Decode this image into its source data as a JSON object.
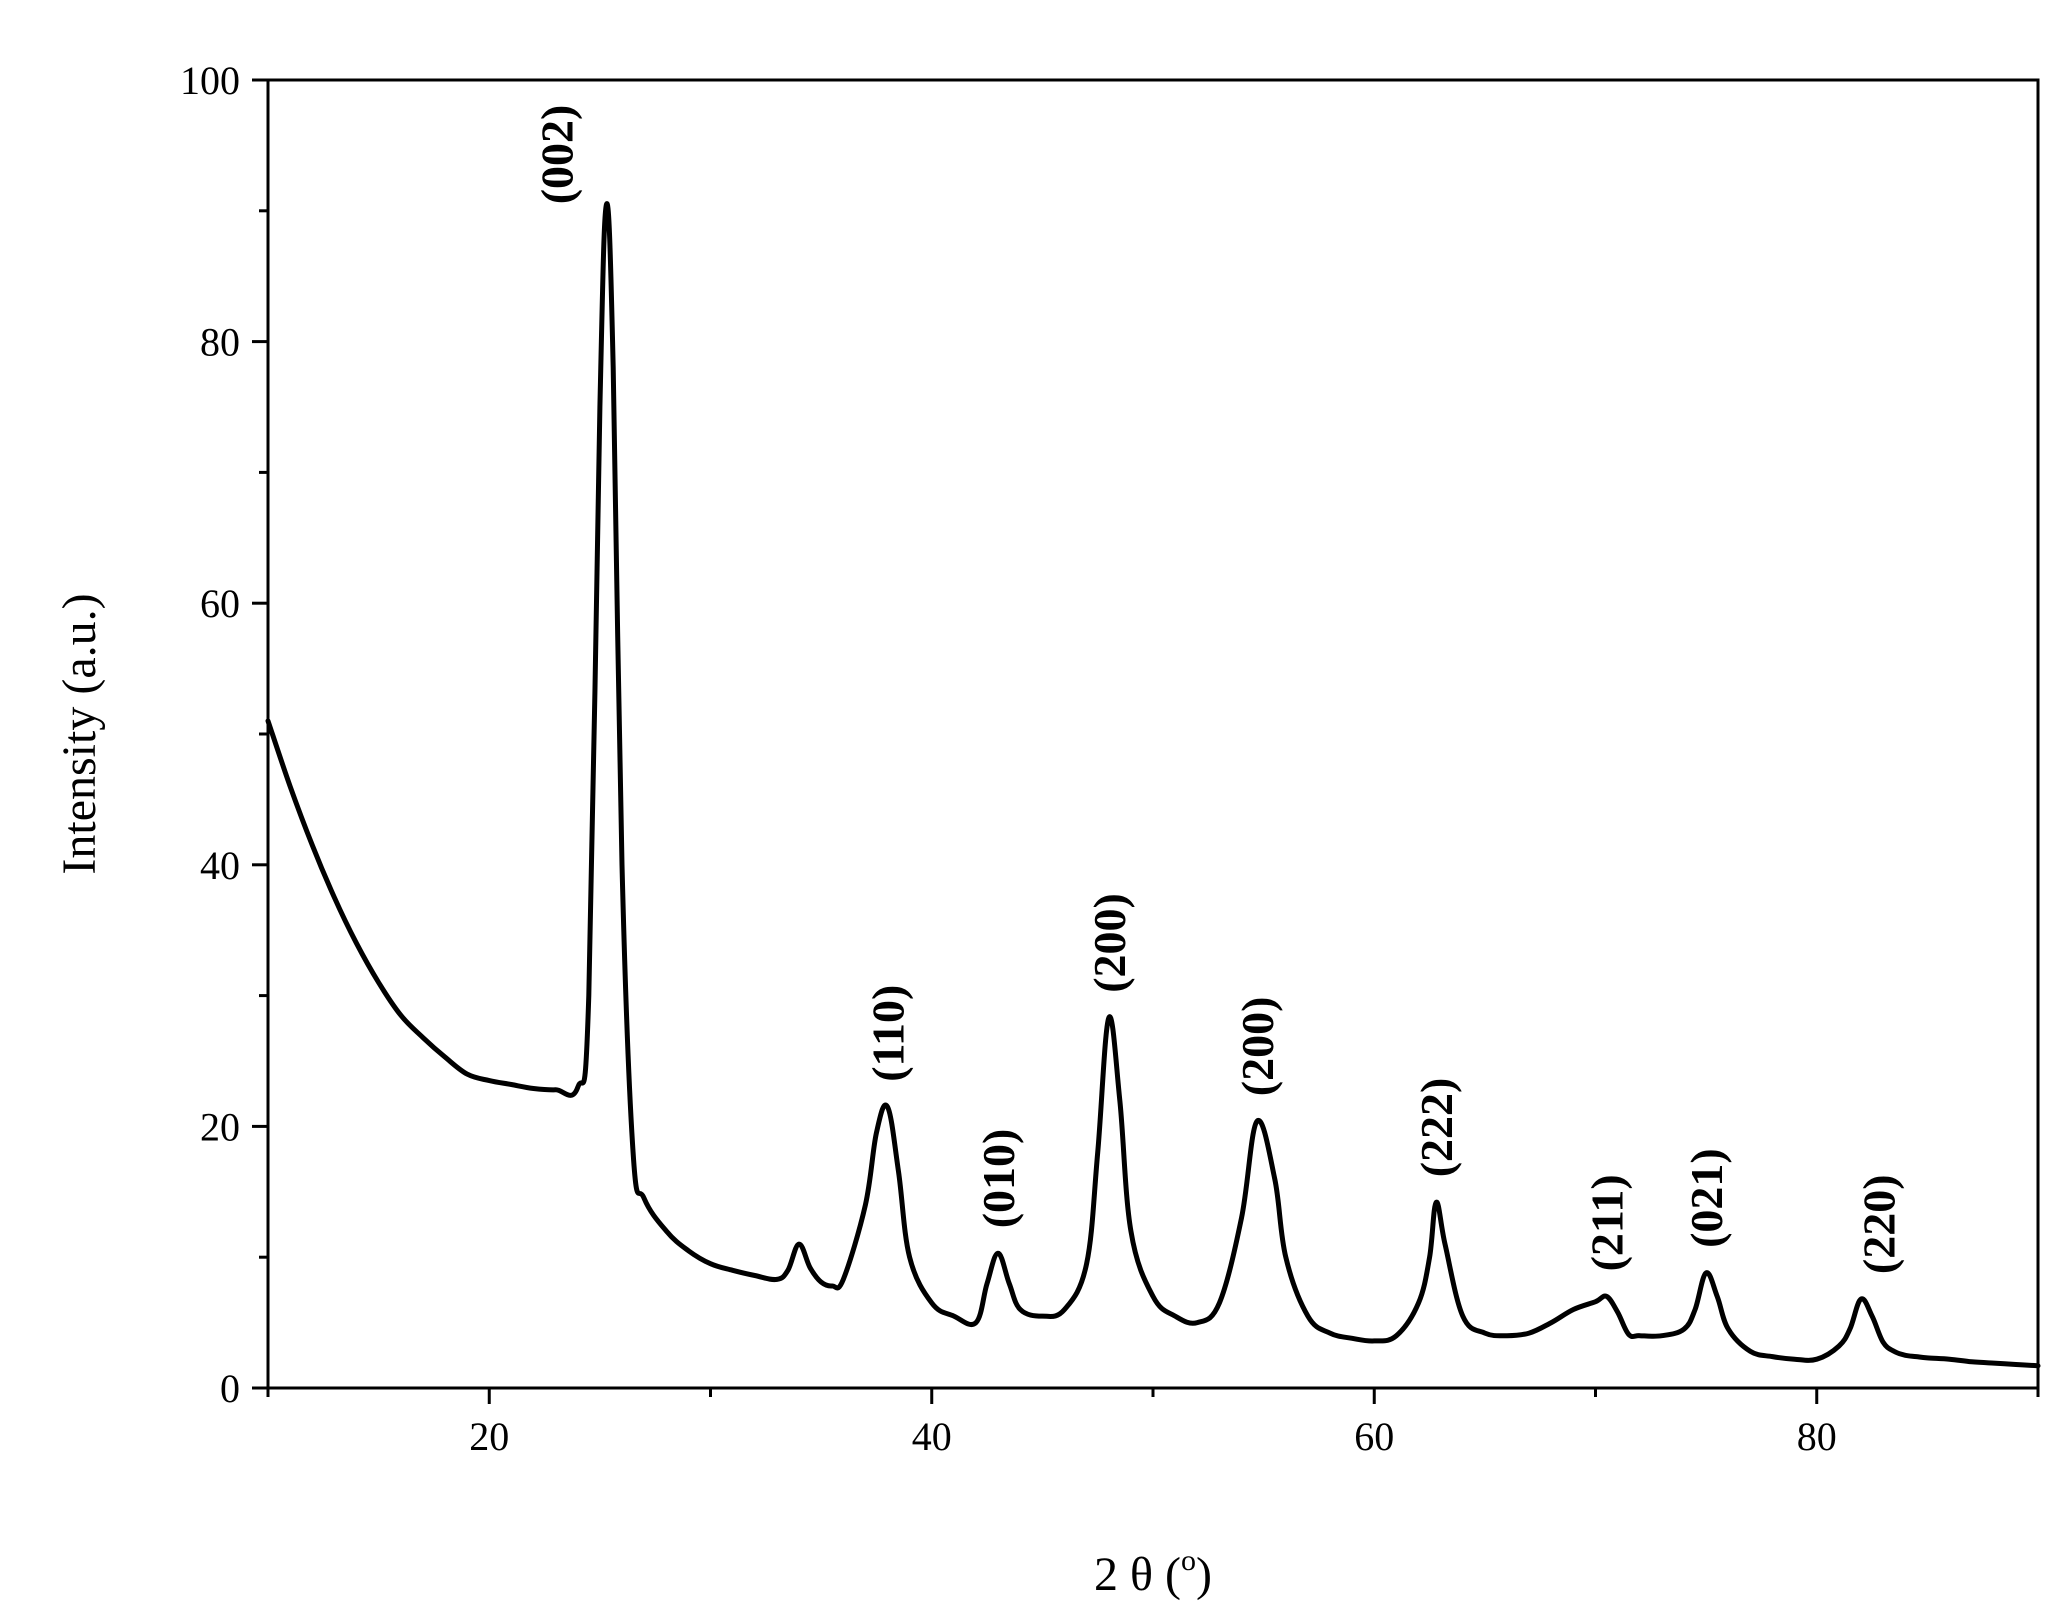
{
  "chart_data": {
    "type": "line",
    "xlabel": "2 θ (",
    "xlabel_unit_sup": "o",
    "xlabel_close": ")",
    "ylabel": "Intensity (a.u.)",
    "xlim": [
      10,
      90
    ],
    "ylim": [
      0,
      100
    ],
    "xticks": [
      20,
      40,
      60,
      80
    ],
    "yticks": [
      0,
      20,
      40,
      60,
      80,
      100
    ],
    "grid": false,
    "legend": "none",
    "line_color": "#000000",
    "series": [
      {
        "x": [
          10,
          11,
          12,
          13,
          14,
          15,
          16,
          17,
          18,
          19,
          20,
          21,
          22,
          23,
          24,
          24.5,
          25,
          25.3,
          25.6,
          26,
          26.5,
          27,
          28,
          29,
          30,
          31,
          32,
          33,
          33.5,
          34,
          34.5,
          35,
          35.5,
          36,
          37,
          37.5,
          38,
          38.5,
          39,
          40,
          41,
          42,
          42.5,
          43,
          43.5,
          44,
          45,
          46,
          47,
          47.5,
          48,
          48.5,
          49,
          50,
          51,
          52,
          53,
          54,
          54.7,
          55.5,
          56,
          57,
          58,
          59,
          60,
          61,
          62,
          62.5,
          62.8,
          63.2,
          64,
          65,
          66,
          67,
          68,
          69,
          70,
          70.5,
          71,
          71.5,
          72,
          73,
          74,
          74.5,
          75,
          75.5,
          76,
          77,
          78,
          79,
          80,
          81,
          81.5,
          82,
          82.5,
          83,
          83.5,
          84,
          84.5,
          85,
          86,
          87,
          88,
          89,
          90
        ],
        "values": [
          51,
          46,
          41.5,
          37.5,
          34,
          31,
          28.5,
          26.8,
          25.3,
          24,
          23.5,
          23.2,
          22.9,
          22.8,
          23,
          30,
          75,
          90.5,
          78,
          40,
          18,
          14.5,
          12,
          10.5,
          9.5,
          9,
          8.6,
          8.3,
          9,
          11,
          9.2,
          8.1,
          7.8,
          8.3,
          14,
          19.5,
          21.5,
          16.5,
          10,
          6.5,
          5.5,
          5,
          8,
          10.3,
          8,
          6,
          5.5,
          6,
          9.5,
          18,
          28.3,
          22,
          12,
          7,
          5.5,
          5,
          6.5,
          13,
          20.4,
          16,
          10,
          5.5,
          4.2,
          3.8,
          3.6,
          4,
          6.5,
          10,
          14.2,
          11,
          5.5,
          4.2,
          4,
          4.2,
          5,
          6,
          6.6,
          7,
          5.8,
          4.1,
          4,
          4,
          4.5,
          6,
          8.8,
          7,
          4.5,
          2.8,
          2.4,
          2.2,
          2.2,
          3.2,
          4.5,
          6.8,
          5.5,
          3.5,
          2.8,
          2.5,
          2.4,
          2.3,
          2.2,
          2.0,
          1.9,
          1.8,
          1.7
        ],
        "peak_labels": [
          {
            "text": "(002)",
            "x": 25.3,
            "y": 90.5
          },
          {
            "text": "(110)",
            "x": 38.0,
            "y": 21.5
          },
          {
            "text": "(010)",
            "x": 43.0,
            "y": 10.3
          },
          {
            "text": "(200)",
            "x": 48.0,
            "y": 28.3
          },
          {
            "text": "(200)",
            "x": 54.7,
            "y": 20.4
          },
          {
            "text": "(222)",
            "x": 62.8,
            "y": 14.2
          },
          {
            "text": "(211)",
            "x": 70.5,
            "y": 7.0
          },
          {
            "text": "(021)",
            "x": 75.0,
            "y": 8.8
          },
          {
            "text": "(220)",
            "x": 82.8,
            "y": 6.8
          }
        ]
      }
    ]
  }
}
